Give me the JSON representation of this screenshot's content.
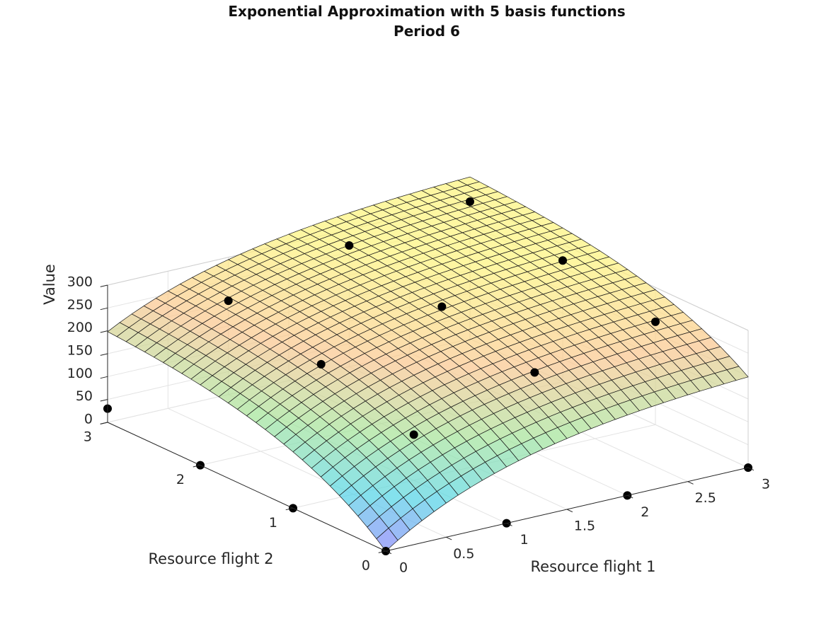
{
  "chart_data": {
    "type": "surface3d",
    "title": "Exponential Approximation with 5 basis functions",
    "subtitle": "Period 6",
    "xlabel": "Resource flight 1",
    "ylabel": "Resource flight 2",
    "zlabel": "Value",
    "xlim": [
      0,
      3
    ],
    "ylim": [
      0,
      3
    ],
    "zlim": [
      0,
      300
    ],
    "x_ticks": [
      "0",
      "0.5",
      "1",
      "1.5",
      "2",
      "2.5",
      "3"
    ],
    "y_ticks": [
      "0",
      "1",
      "2",
      "3"
    ],
    "z_ticks": [
      "0",
      "50",
      "100",
      "150",
      "200",
      "250",
      "300"
    ],
    "grid": true,
    "surface": {
      "x_range": [
        0,
        3
      ],
      "y_range": [
        0,
        3
      ],
      "mesh_count": 30,
      "formula": "z = 215*(1-exp(-0.85*x)) + 215*(1-exp(-0.85*y)) - 50*(1-exp(-0.85*x))*(1-exp(-0.85*y))",
      "colormap": [
        "#8a7dfb",
        "#54d5e6",
        "#a5e49a",
        "#fbc790",
        "#fdf47e"
      ],
      "z_color_range": [
        0,
        320
      ],
      "opacity": 0.72
    },
    "data_points": [
      {
        "x": 0,
        "y": 0,
        "z": 0
      },
      {
        "x": 1,
        "y": 0,
        "z": 0
      },
      {
        "x": 2,
        "y": 0,
        "z": 0
      },
      {
        "x": 3,
        "y": 0,
        "z": 0
      },
      {
        "x": 0,
        "y": 1,
        "z": 0
      },
      {
        "x": 0,
        "y": 2,
        "z": 0
      },
      {
        "x": 0,
        "y": 3,
        "z": 30
      },
      {
        "x": 1,
        "y": 1,
        "z": 100
      },
      {
        "x": 1,
        "y": 2,
        "z": 160
      },
      {
        "x": 1,
        "y": 3,
        "z": 205
      },
      {
        "x": 2,
        "y": 1,
        "z": 175
      },
      {
        "x": 2,
        "y": 2,
        "z": 225
      },
      {
        "x": 2,
        "y": 3,
        "z": 265
      },
      {
        "x": 3,
        "y": 1,
        "z": 225
      },
      {
        "x": 3,
        "y": 2,
        "z": 265
      },
      {
        "x": 3,
        "y": 3,
        "z": 300
      }
    ]
  }
}
